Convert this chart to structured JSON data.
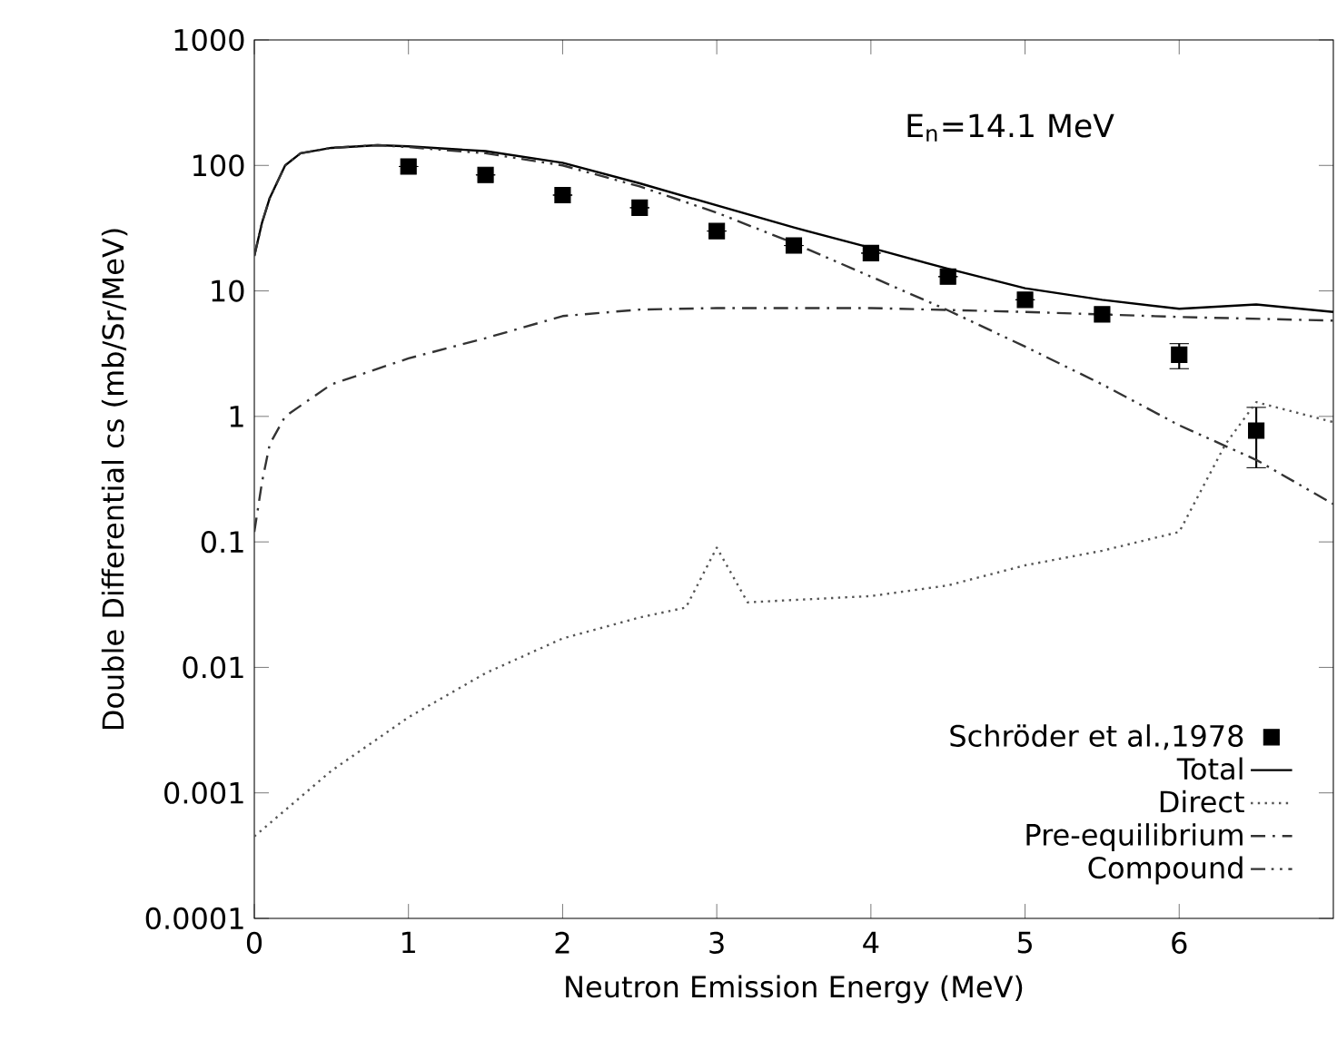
{
  "chart_data": {
    "type": "line",
    "xlabel": "Neutron Emission Energy (MeV)",
    "ylabel": "Double Differential cs (mb/Sr/MeV)",
    "annotations": [
      "E$_{n}$=14.1 MeV"
    ],
    "xlim": [
      0,
      7
    ],
    "xticks": [
      0,
      1,
      2,
      3,
      4,
      5,
      6
    ],
    "ylim": [
      0.0001,
      1000
    ],
    "yticks": [
      0.0001,
      0.001,
      0.01,
      0.1,
      1,
      10,
      100,
      1000
    ],
    "log": "y",
    "grid": false,
    "legend": "bottom right",
    "series": [
      {
        "name": "Schröder et al.,1978",
        "type": "scatter",
        "marker": "square",
        "color": "#000000",
        "x": [
          1,
          1.5,
          2,
          2.5,
          3,
          3.5,
          4,
          4.5,
          5,
          5.5,
          6,
          6.5
        ],
        "values": [
          98,
          84,
          58,
          46,
          30,
          23,
          20,
          13,
          8.5,
          6.5,
          3.1,
          0.77
        ],
        "errors": [
          null,
          null,
          null,
          null,
          null,
          null,
          null,
          null,
          null,
          null,
          [
            2.4,
            3.8
          ],
          [
            0.39,
            1.18
          ]
        ]
      },
      {
        "name": "Total",
        "line_style": "solid",
        "color": "#000000",
        "x": [
          0,
          0.05,
          0.1,
          0.2,
          0.3,
          0.5,
          0.8,
          1,
          1.5,
          2,
          2.5,
          3,
          3.5,
          4,
          4.5,
          5,
          5.5,
          6,
          6.5,
          7
        ],
        "values": [
          19,
          35,
          55,
          100,
          125,
          138,
          145,
          142,
          130,
          105,
          72,
          48,
          32,
          22,
          15,
          10.5,
          8.5,
          7.2,
          7.8,
          6.8
        ]
      },
      {
        "name": "Direct",
        "line_style": "dotted",
        "color": "#555555",
        "x": [
          0,
          0.5,
          1,
          1.5,
          2,
          2.5,
          2.8,
          3,
          3.2,
          4,
          4.5,
          5,
          5.5,
          6,
          6.3,
          6.5,
          7
        ],
        "values": [
          0.00045,
          0.0015,
          0.004,
          0.009,
          0.017,
          0.025,
          0.03,
          0.09,
          0.033,
          0.037,
          0.045,
          0.065,
          0.085,
          0.12,
          0.6,
          1.3,
          0.9
        ]
      },
      {
        "name": "Pre-equilibrium",
        "line_style": "dashdotted",
        "color": "#333333",
        "x": [
          0,
          0.05,
          0.1,
          0.2,
          0.5,
          1,
          1.5,
          2,
          2.5,
          3,
          4,
          5,
          6,
          7
        ],
        "values": [
          0.12,
          0.3,
          0.6,
          1.0,
          1.8,
          2.9,
          4.2,
          6.3,
          7.1,
          7.3,
          7.3,
          6.8,
          6.2,
          5.8
        ]
      },
      {
        "name": "Compound",
        "line_style": "dashdotdotted",
        "color": "#333333",
        "x": [
          0,
          0.05,
          0.1,
          0.2,
          0.3,
          0.5,
          0.8,
          1,
          1.5,
          2,
          2.5,
          3,
          3.5,
          4,
          4.5,
          5,
          5.5,
          6,
          6.5,
          7
        ],
        "values": [
          19,
          35,
          55,
          100,
          125,
          138,
          145,
          140,
          125,
          100,
          68,
          42,
          24,
          13,
          7,
          3.6,
          1.8,
          0.85,
          0.45,
          0.2
        ]
      }
    ]
  }
}
